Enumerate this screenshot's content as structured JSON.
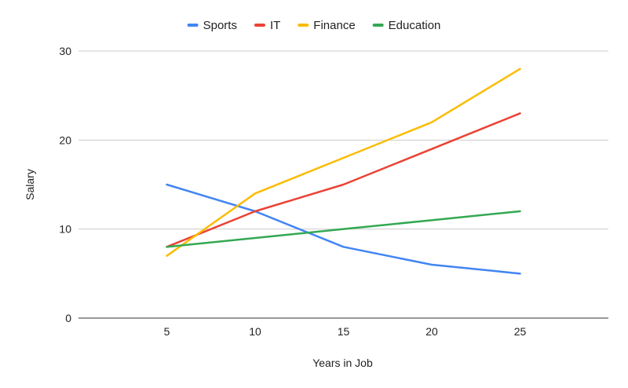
{
  "chart_data": {
    "type": "line",
    "title": "",
    "xlabel": "Years in Job",
    "ylabel": "Salary",
    "x": [
      5,
      10,
      15,
      20,
      25
    ],
    "xlim": [
      0,
      30
    ],
    "ylim": [
      0,
      30
    ],
    "y_ticks": [
      0,
      10,
      20,
      30
    ],
    "grid": true,
    "legend_position": "top",
    "series": [
      {
        "name": "Sports",
        "color": "#4285F4",
        "values": [
          15,
          12,
          8,
          6,
          5
        ]
      },
      {
        "name": "IT",
        "color": "#EA4335",
        "values": [
          8,
          12,
          15,
          19,
          23
        ]
      },
      {
        "name": "Finance",
        "color": "#FBBC04",
        "values": [
          7,
          14,
          18,
          22,
          28
        ]
      },
      {
        "name": "Education",
        "color": "#34A853",
        "values": [
          8,
          9,
          10,
          11,
          12
        ]
      }
    ]
  }
}
